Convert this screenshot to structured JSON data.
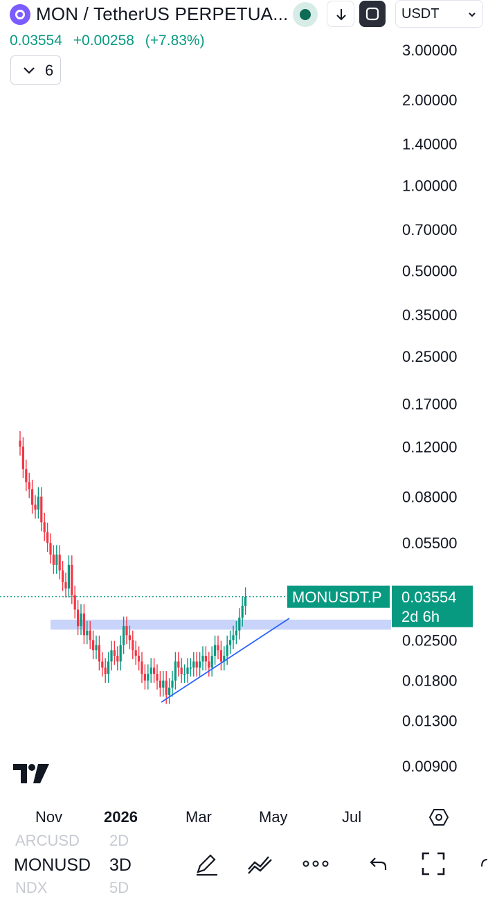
{
  "header": {
    "title": "MON / TetherUS PERPETUA...",
    "currency": "USDT",
    "last_price": "0.03554",
    "change": "+0.00258",
    "change_pct": "(+7.83%)",
    "indicators_count": "6",
    "icons": [
      "symbol-logo-icon",
      "live-dot-icon",
      "arrow-down-icon",
      "fullscreen-icon",
      "chevron-down-icon"
    ]
  },
  "chart_data": {
    "type": "candlestick",
    "scale": "log",
    "price_axis_labels": [
      "3.00000",
      "2.00000",
      "1.40000",
      "1.00000",
      "0.70000",
      "0.50000",
      "0.35000",
      "0.25000",
      "0.17000",
      "0.12000",
      "0.08000",
      "0.05500",
      "0.02500",
      "0.01800",
      "0.01300",
      "0.00900"
    ],
    "time_axis_labels": [
      "Nov",
      "2026",
      "Mar",
      "May",
      "Jul"
    ],
    "symbol_label": "MONUSDT.P",
    "last_price": "0.03554",
    "countdown": "2d 6h",
    "colors": {
      "up": "#089981",
      "down": "#f23645",
      "zone": "#c9d4fb",
      "trendline": "#2962ff",
      "label_bg": "#089981"
    },
    "candles_close_series": [
      0.12,
      0.1,
      0.09,
      0.085,
      0.075,
      0.072,
      0.08,
      0.065,
      0.06,
      0.055,
      0.05,
      0.046,
      0.05,
      0.044,
      0.04,
      0.038,
      0.046,
      0.036,
      0.032,
      0.028,
      0.031,
      0.026,
      0.027,
      0.025,
      0.023,
      0.024,
      0.021,
      0.02,
      0.019,
      0.021,
      0.023,
      0.022,
      0.021,
      0.024,
      0.028,
      0.026,
      0.025,
      0.023,
      0.022,
      0.021,
      0.019,
      0.018,
      0.019,
      0.02,
      0.019,
      0.018,
      0.017,
      0.018,
      0.016,
      0.017,
      0.018,
      0.021,
      0.02,
      0.019,
      0.019,
      0.02,
      0.02,
      0.021,
      0.02,
      0.021,
      0.022,
      0.021,
      0.02,
      0.022,
      0.024,
      0.023,
      0.021,
      0.022,
      0.024,
      0.025,
      0.026,
      0.027,
      0.03,
      0.033,
      0.0355
    ]
  },
  "time_axis": {
    "labels": [
      "Nov",
      "2026",
      "Mar",
      "May",
      "Jul"
    ]
  },
  "bottom_bar": {
    "symbol_prev": "ARCUSD",
    "symbol_current": "MONUSD",
    "symbol_next": "NDX",
    "interval_prev": "2D",
    "interval_current": "3D",
    "interval_next": "5D"
  }
}
